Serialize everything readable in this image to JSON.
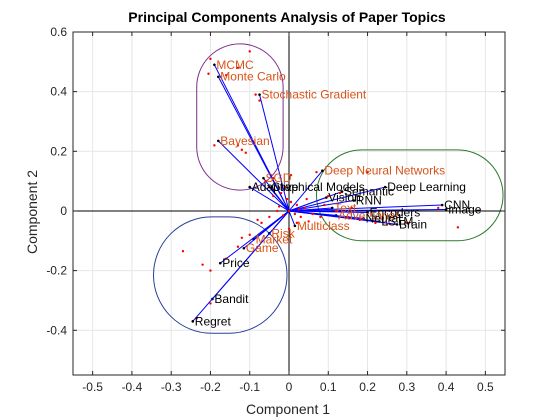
{
  "chart_data": {
    "type": "scatter",
    "title": "Principal Components Analysis of Paper Topics",
    "xlabel": "Component 1",
    "ylabel": "Component 2",
    "xlim": [
      -0.55,
      0.55
    ],
    "ylim": [
      -0.55,
      0.6
    ],
    "xticks": [
      -0.5,
      -0.4,
      -0.3,
      -0.2,
      -0.1,
      0,
      0.1,
      0.2,
      0.3,
      0.4,
      0.5
    ],
    "yticks": [
      -0.4,
      -0.2,
      0,
      0.2,
      0.4,
      0.6
    ],
    "xtick_labels": [
      "-0.5",
      "-0.4",
      "-0.3",
      "-0.2",
      "-0.1",
      "0",
      "0.1",
      "0.2",
      "0.3",
      "0.4",
      "0.5"
    ],
    "ytick_labels": [
      "-0.4",
      "-0.2",
      "0",
      "0.2",
      "0.4",
      "0.6"
    ],
    "grid": true,
    "vector_color": "#0000ff",
    "point_color": "#ff0000",
    "vectors": [
      {
        "label": "MCMC",
        "x": -0.19,
        "y": 0.49,
        "color": "#d95319"
      },
      {
        "label": "Monte Carlo",
        "x": -0.18,
        "y": 0.45,
        "color": "#d95319"
      },
      {
        "label": "Stochastic Gradient",
        "x": -0.075,
        "y": 0.39,
        "color": "#d95319"
      },
      {
        "label": "Bayesian",
        "x": -0.18,
        "y": 0.235,
        "color": "#d95319"
      },
      {
        "label": "SGD",
        "x": -0.065,
        "y": 0.11,
        "color": "#d95319"
      },
      {
        "label": "Graphical Models",
        "x": -0.05,
        "y": 0.08,
        "color": "#000000"
      },
      {
        "label": "Adaptive",
        "x": -0.1,
        "y": 0.08,
        "color": "#000000"
      },
      {
        "label": "Deep Neural Networks",
        "x": 0.085,
        "y": 0.135,
        "color": "#d95319"
      },
      {
        "label": "Semantic",
        "x": 0.135,
        "y": 0.065,
        "color": "#000000"
      },
      {
        "label": "Deep Learning",
        "x": 0.245,
        "y": 0.08,
        "color": "#000000"
      },
      {
        "label": "Vision",
        "x": 0.095,
        "y": 0.045,
        "color": "#000000"
      },
      {
        "label": "RNN",
        "x": 0.165,
        "y": 0.035,
        "color": "#000000"
      },
      {
        "label": "CNN",
        "x": 0.39,
        "y": 0.02,
        "color": "#000000"
      },
      {
        "label": "Image",
        "x": 0.4,
        "y": 0.005,
        "color": "#000000"
      },
      {
        "label": "Text",
        "x": 0.11,
        "y": 0.01,
        "color": "#d95319"
      },
      {
        "label": "Encoders",
        "x": 0.2,
        "y": -0.005,
        "color": "#000000"
      },
      {
        "label": "Adversarial",
        "x": 0.12,
        "y": -0.015,
        "color": "#d95319"
      },
      {
        "label": "LSTM",
        "x": 0.23,
        "y": -0.035,
        "color": "#000000"
      },
      {
        "label": "Brain",
        "x": 0.275,
        "y": -0.045,
        "color": "#000000"
      },
      {
        "label": "Neural",
        "x": 0.19,
        "y": -0.025,
        "color": "#000000"
      },
      {
        "label": "Multiclass",
        "x": 0.015,
        "y": -0.05,
        "color": "#d95319"
      },
      {
        "label": "Risk",
        "x": -0.05,
        "y": -0.075,
        "color": "#d95319"
      },
      {
        "label": "Market",
        "x": -0.09,
        "y": -0.095,
        "color": "#d95319"
      },
      {
        "label": "Game",
        "x": -0.115,
        "y": -0.125,
        "color": "#d95319"
      },
      {
        "label": "Price",
        "x": -0.175,
        "y": -0.175,
        "color": "#000000"
      },
      {
        "label": "Bandit",
        "x": -0.195,
        "y": -0.295,
        "color": "#000000"
      },
      {
        "label": "Regret",
        "x": -0.245,
        "y": -0.37,
        "color": "#000000"
      }
    ],
    "points": [
      [
        -0.2,
        0.51
      ],
      [
        -0.16,
        0.455
      ],
      [
        -0.205,
        0.46
      ],
      [
        -0.1,
        0.535
      ],
      [
        -0.13,
        0.48
      ],
      [
        -0.085,
        0.39
      ],
      [
        -0.075,
        0.37
      ],
      [
        -0.19,
        0.22
      ],
      [
        -0.13,
        0.22
      ],
      [
        -0.12,
        0.205
      ],
      [
        -0.11,
        0.195
      ],
      [
        -0.06,
        0.1
      ],
      [
        -0.04,
        0.11
      ],
      [
        -0.02,
        0.06
      ],
      [
        -0.005,
        0.04
      ],
      [
        0.005,
        0.03
      ],
      [
        0.02,
        0.02
      ],
      [
        0.04,
        0.01
      ],
      [
        0.06,
        -0.01
      ],
      [
        0.08,
        -0.02
      ],
      [
        -0.03,
        0.0
      ],
      [
        -0.05,
        -0.02
      ],
      [
        -0.07,
        -0.04
      ],
      [
        -0.1,
        -0.08
      ],
      [
        -0.12,
        -0.09
      ],
      [
        -0.13,
        -0.12
      ],
      [
        -0.16,
        -0.16
      ],
      [
        -0.2,
        -0.2
      ],
      [
        -0.27,
        -0.135
      ],
      [
        -0.22,
        -0.18
      ],
      [
        -0.2,
        -0.31
      ],
      [
        -0.235,
        -0.36
      ],
      [
        0.0,
        -0.06
      ],
      [
        0.02,
        -0.04
      ],
      [
        0.03,
        -0.02
      ],
      [
        0.1,
        0.05
      ],
      [
        0.12,
        0.0
      ],
      [
        0.15,
        -0.02
      ],
      [
        0.18,
        -0.03
      ],
      [
        0.22,
        -0.04
      ],
      [
        0.25,
        -0.045
      ],
      [
        0.3,
        -0.04
      ],
      [
        0.43,
        -0.055
      ],
      [
        0.38,
        0.01
      ],
      [
        0.2,
        0.13
      ],
      [
        0.07,
        0.13
      ],
      [
        0.13,
        0.06
      ],
      [
        0.005,
        0.12
      ],
      [
        -0.01,
        0.08
      ],
      [
        0.015,
        -0.01
      ],
      [
        -0.015,
        -0.015
      ],
      [
        0.045,
        0.04
      ],
      [
        -0.04,
        0.05
      ],
      [
        0.0,
        0.0
      ],
      [
        0.025,
        0.005
      ],
      [
        -0.025,
        0.015
      ],
      [
        0.05,
        -0.035
      ],
      [
        0.09,
        0.02
      ],
      [
        0.16,
        0.01
      ],
      [
        -0.08,
        -0.03
      ]
    ],
    "groups": [
      {
        "color": "#7e2f8e",
        "x_range": [
          -0.235,
          -0.015
        ],
        "y_range": [
          0.07,
          0.56
        ]
      },
      {
        "color": "#2c7a2e",
        "x_range": [
          0.07,
          0.545
        ],
        "y_range": [
          -0.1,
          0.205
        ]
      },
      {
        "color": "#27409b",
        "x_range": [
          -0.345,
          -0.005
        ],
        "y_range": [
          -0.41,
          -0.02
        ]
      }
    ]
  }
}
